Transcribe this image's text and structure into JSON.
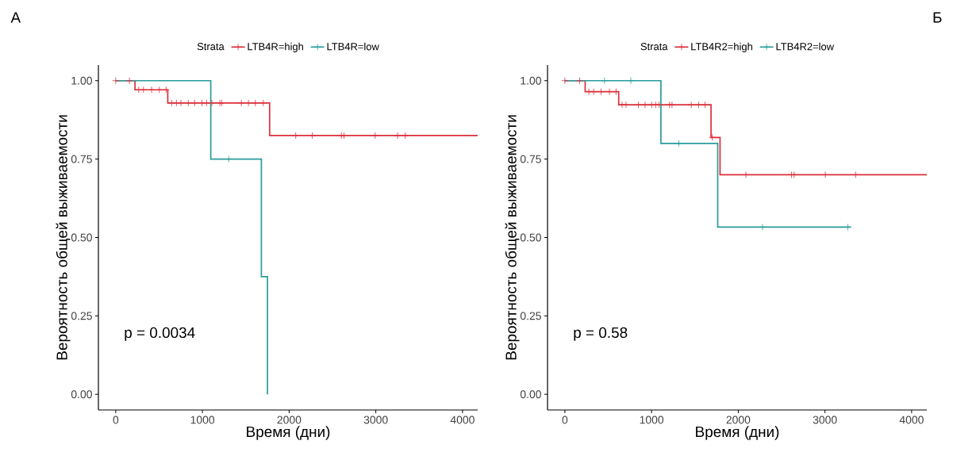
{
  "chart_data": [
    {
      "type": "step",
      "title": "А",
      "xlabel": "Время (дни)",
      "ylabel": "Вероятность общей выживаемости",
      "legend_title": "Strata",
      "legend": "top",
      "grid": false,
      "xlim": [
        -200,
        4175
      ],
      "ylim": [
        -0.05,
        1.05
      ],
      "xticks": [
        0,
        1000,
        2000,
        3000,
        4000
      ],
      "yticks": [
        {
          "value": 0,
          "label": "0.00"
        },
        {
          "value": 0.25,
          "label": "0.25"
        },
        {
          "value": 0.5,
          "label": "0.50"
        },
        {
          "value": 0.75,
          "label": "0.75"
        },
        {
          "value": 1,
          "label": "1.00"
        }
      ],
      "annotations": [
        "p = 0.0034"
      ],
      "series": [
        {
          "name": "LTB4R=high",
          "color": "#dc2f3a",
          "x": [
            0,
            222,
            600,
            1775,
            4175
          ],
          "values": [
            1,
            0.971,
            0.929,
            0.825,
            0.825
          ]
        },
        {
          "name": "LTB4R=low",
          "color": "#2a9c9c",
          "x": [
            0,
            1096,
            1680,
            1750
          ],
          "values": [
            1,
            0.75,
            0.375,
            0
          ]
        },
        {
          "type": "scatter",
          "marker": "cross",
          "color": "#dc2f3a",
          "x": [
            0,
            158,
            265,
            320,
            414,
            502,
            581,
            645,
            700,
            752,
            837,
            910,
            995,
            1047,
            1108,
            1202,
            1224,
            1449,
            1531,
            1610,
            1702,
            2076,
            2268,
            2603,
            2633,
            2992,
            3251,
            3340
          ],
          "values": [
            1,
            1,
            0.971,
            0.971,
            0.971,
            0.971,
            0.971,
            0.929,
            0.929,
            0.929,
            0.929,
            0.929,
            0.929,
            0.929,
            0.929,
            0.929,
            0.929,
            0.929,
            0.929,
            0.929,
            0.929,
            0.825,
            0.825,
            0.825,
            0.825,
            0.825,
            0.825,
            0.825
          ]
        },
        {
          "type": "scatter",
          "marker": "cross",
          "color": "#2a9c9c",
          "x": [
            1303
          ],
          "values": [
            0.75
          ]
        }
      ]
    },
    {
      "type": "step",
      "title": "Б",
      "xlabel": "Время (дни)",
      "ylabel": "Вероятность общей выживаемости",
      "legend_title": "Strata",
      "legend": "top",
      "grid": false,
      "xlim": [
        -200,
        4175
      ],
      "ylim": [
        -0.05,
        1.05
      ],
      "xticks": [
        0,
        1000,
        2000,
        3000,
        4000
      ],
      "yticks": [
        {
          "value": 0,
          "label": "0.00"
        },
        {
          "value": 0.25,
          "label": "0.25"
        },
        {
          "value": 0.5,
          "label": "0.50"
        },
        {
          "value": 0.75,
          "label": "0.75"
        },
        {
          "value": 1,
          "label": "1.00"
        }
      ],
      "annotations": [
        "p = 0.58"
      ],
      "series": [
        {
          "name": "LTB4R2=high",
          "color": "#dc2f3a",
          "x": [
            0,
            234,
            621,
            1686,
            1790,
            4175
          ],
          "values": [
            1,
            0.965,
            0.923,
            0.819,
            0.7,
            0.7
          ]
        },
        {
          "name": "LTB4R2=low",
          "color": "#2a9c9c",
          "x": [
            0,
            1108,
            1763,
            3300
          ],
          "values": [
            1,
            0.8,
            0.533,
            0.533
          ]
        },
        {
          "type": "scatter",
          "marker": "cross",
          "color": "#dc2f3a",
          "x": [
            0,
            171,
            277,
            332,
            417,
            514,
            591,
            660,
            706,
            849,
            925,
            1002,
            1047,
            1087,
            1208,
            1236,
            1458,
            1543,
            1616,
            1701,
            2088,
            2614,
            2645,
            3004,
            3354
          ],
          "values": [
            1,
            1,
            0.965,
            0.965,
            0.965,
            0.965,
            0.965,
            0.923,
            0.923,
            0.923,
            0.923,
            0.923,
            0.923,
            0.923,
            0.923,
            0.923,
            0.923,
            0.923,
            0.923,
            0.819,
            0.7,
            0.7,
            0.7,
            0.7,
            0.7
          ]
        },
        {
          "type": "scatter",
          "marker": "cross",
          "color": "#2a9c9c",
          "x": [
            457,
            761,
            1315,
            2280,
            3264
          ],
          "values": [
            1,
            1,
            0.8,
            0.533,
            0.533
          ]
        }
      ]
    }
  ]
}
